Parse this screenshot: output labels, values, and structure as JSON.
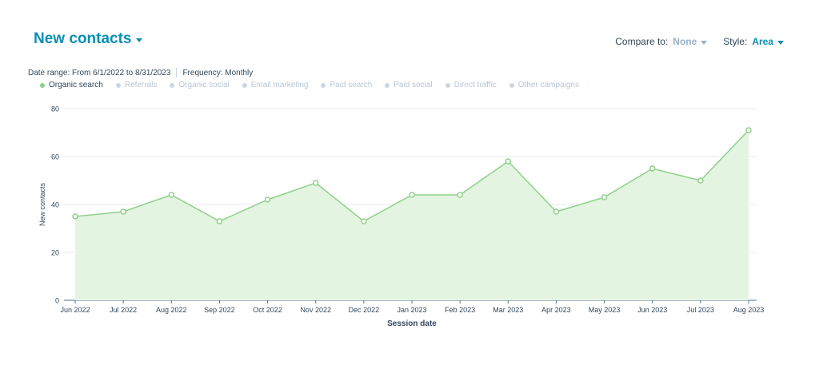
{
  "header": {
    "title": "New contacts"
  },
  "controls": {
    "compare_label": "Compare to:",
    "compare_value": "None",
    "style_label": "Style:",
    "style_value": "Area"
  },
  "info": {
    "date_range": "Date range: From 6/1/2022 to 8/31/2023",
    "frequency": "Frequency: Monthly"
  },
  "legend": [
    {
      "label": "Organic search",
      "active": true
    },
    {
      "label": "Referrals",
      "active": false
    },
    {
      "label": "Organic social",
      "active": false
    },
    {
      "label": "Email marketing",
      "active": false
    },
    {
      "label": "Paid search",
      "active": false
    },
    {
      "label": "Paid social",
      "active": false
    },
    {
      "label": "Direct traffic",
      "active": false
    },
    {
      "label": "Other campaigns",
      "active": false
    }
  ],
  "colors": {
    "series": "#8fd08a",
    "fill": "#e3f4e1",
    "accent": "#0b8eb5"
  },
  "chart_data": {
    "type": "area",
    "xlabel": "Session date",
    "ylabel": "New contacts",
    "ylim": [
      0,
      80
    ],
    "yticks": [
      0,
      20,
      40,
      60,
      80
    ],
    "categories": [
      "Jun 2022",
      "Jul 2022",
      "Aug 2022",
      "Sep 2022",
      "Oct 2022",
      "Nov 2022",
      "Dec 2022",
      "Jan 2023",
      "Feb 2023",
      "Mar 2023",
      "Apr 2023",
      "May 2023",
      "Jun 2023",
      "Jul 2023",
      "Aug 2023"
    ],
    "series": [
      {
        "name": "Organic search",
        "values": [
          35,
          37,
          44,
          33,
          42,
          49,
          33,
          44,
          44,
          58,
          37,
          43,
          55,
          50,
          71
        ]
      }
    ]
  }
}
